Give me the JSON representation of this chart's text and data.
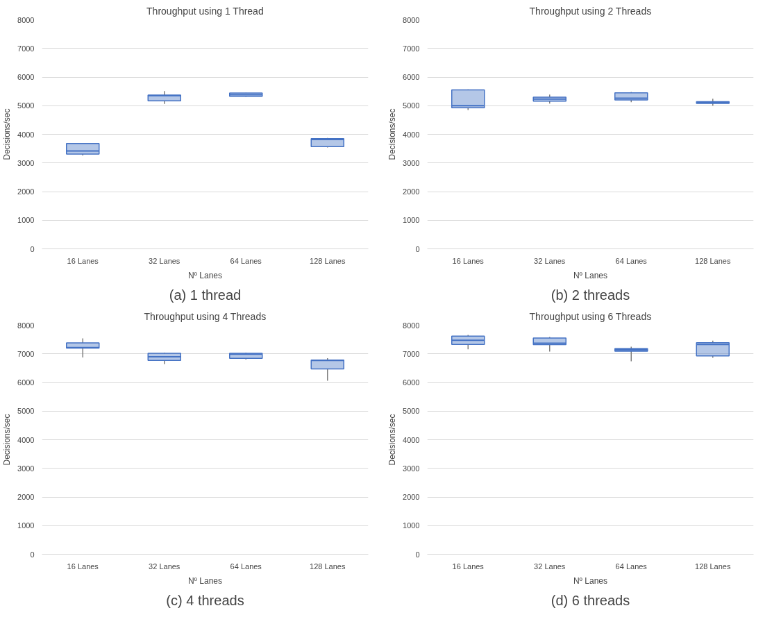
{
  "chart_data": [
    {
      "type": "box",
      "title": "Throughput using 1 Thread",
      "xlabel": "Nº Lanes",
      "ylabel": "Decisions/sec",
      "categories": [
        "16 Lanes",
        "32 Lanes",
        "64 Lanes",
        "128 Lanes"
      ],
      "ylim": [
        0,
        8000
      ],
      "yticks": [
        0,
        1000,
        2000,
        3000,
        4000,
        5000,
        6000,
        7000,
        8000
      ],
      "grid": "y",
      "annotations": [
        "(a) 1 thread"
      ],
      "series": [
        {
          "color": "#4472c4",
          "boxes": [
            {
              "low": 3260,
              "q1": 3310,
              "median": 3420,
              "q3": 3680,
              "high": 3700
            },
            {
              "low": 5060,
              "q1": 5170,
              "median": 5350,
              "q3": 5370,
              "high": 5510
            },
            {
              "low": 5310,
              "q1": 5330,
              "median": 5380,
              "q3": 5440,
              "high": 5450
            },
            {
              "low": 3540,
              "q1": 3570,
              "median": 3820,
              "q3": 3850,
              "high": 3870
            }
          ]
        }
      ]
    },
    {
      "type": "box",
      "title": "Throughput using 2 Threads",
      "xlabel": "Nº Lanes",
      "ylabel": "Decisions/sec",
      "categories": [
        "16 Lanes",
        "32 Lanes",
        "64 Lanes",
        "128 Lanes"
      ],
      "ylim": [
        0,
        8000
      ],
      "yticks": [
        0,
        1000,
        2000,
        3000,
        4000,
        5000,
        6000,
        7000,
        8000
      ],
      "grid": "y",
      "annotations": [
        "(b) 2 threads"
      ],
      "series": [
        {
          "color": "#4472c4",
          "boxes": [
            {
              "low": 4850,
              "q1": 4930,
              "median": 5000,
              "q3": 5550,
              "high": 5570
            },
            {
              "low": 5070,
              "q1": 5160,
              "median": 5230,
              "q3": 5300,
              "high": 5390
            },
            {
              "low": 5120,
              "q1": 5200,
              "median": 5260,
              "q3": 5450,
              "high": 5480
            },
            {
              "low": 5000,
              "q1": 5080,
              "median": 5110,
              "q3": 5140,
              "high": 5240
            }
          ]
        }
      ]
    },
    {
      "type": "box",
      "title": "Throughput using 4 Threads",
      "xlabel": "Nº Lanes",
      "ylabel": "Decisions/sec",
      "categories": [
        "16 Lanes",
        "32 Lanes",
        "64 Lanes",
        "128 Lanes"
      ],
      "ylim": [
        0,
        8000
      ],
      "yticks": [
        0,
        1000,
        2000,
        3000,
        4000,
        5000,
        6000,
        7000,
        8000
      ],
      "grid": "y",
      "annotations": [
        "(c) 4 threads"
      ],
      "series": [
        {
          "color": "#4472c4",
          "boxes": [
            {
              "low": 6870,
              "q1": 7200,
              "median": 7220,
              "q3": 7380,
              "high": 7540
            },
            {
              "low": 6640,
              "q1": 6770,
              "median": 6900,
              "q3": 7020,
              "high": 7040
            },
            {
              "low": 6800,
              "q1": 6840,
              "median": 6990,
              "q3": 7020,
              "high": 7040
            },
            {
              "low": 6060,
              "q1": 6470,
              "median": 6770,
              "q3": 6780,
              "high": 6850
            }
          ]
        }
      ]
    },
    {
      "type": "box",
      "title": "Throughput using 6 Threads",
      "xlabel": "Nº Lanes",
      "ylabel": "Decisions/sec",
      "categories": [
        "16 Lanes",
        "32 Lanes",
        "64 Lanes",
        "128 Lanes"
      ],
      "ylim": [
        0,
        8000
      ],
      "yticks": [
        0,
        1000,
        2000,
        3000,
        4000,
        5000,
        6000,
        7000,
        8000
      ],
      "grid": "y",
      "annotations": [
        "(d) 6 threads"
      ],
      "series": [
        {
          "color": "#4472c4",
          "boxes": [
            {
              "low": 7160,
              "q1": 7330,
              "median": 7470,
              "q3": 7620,
              "high": 7660
            },
            {
              "low": 7080,
              "q1": 7320,
              "median": 7370,
              "q3": 7550,
              "high": 7590
            },
            {
              "low": 6740,
              "q1": 7090,
              "median": 7140,
              "q3": 7180,
              "high": 7250
            },
            {
              "low": 6860,
              "q1": 6930,
              "median": 7330,
              "q3": 7390,
              "high": 7460
            }
          ]
        }
      ]
    }
  ]
}
